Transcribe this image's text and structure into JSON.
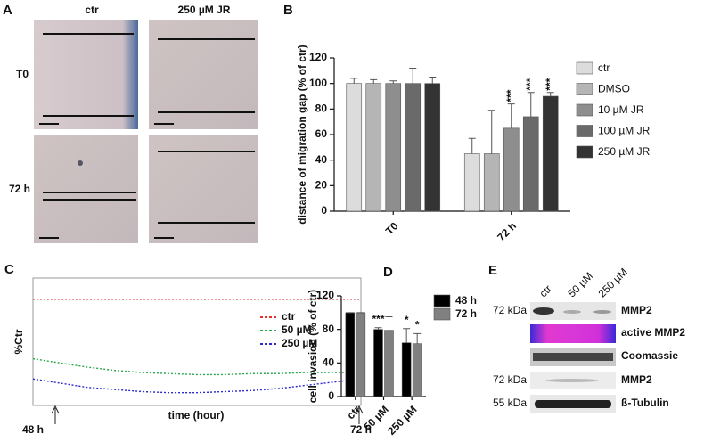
{
  "panels": {
    "A": {
      "panel_label": "A",
      "columns": [
        "ctr",
        "250 µM JR"
      ],
      "rows": [
        "T0",
        "72 h"
      ]
    },
    "E": {
      "panel_label": "E",
      "lanes": [
        "ctr",
        "50 µM",
        "250 µM"
      ],
      "rows": [
        {
          "marker": "72 kDa",
          "label": "MMP2"
        },
        {
          "label": "active MMP2"
        },
        {
          "label": "Coomassie"
        },
        {
          "marker": "72 kDa",
          "label": "MMP2"
        },
        {
          "marker": "55 kDa",
          "label": "ß-Tubulin"
        }
      ]
    }
  },
  "chart_data": [
    {
      "type": "bar",
      "panel_label": "B",
      "y_label": "distance of migration gap (% of ctr)",
      "categories": [
        "T0",
        "72 h"
      ],
      "series": [
        {
          "name": "ctr",
          "color": "#dcdcdc",
          "values": [
            100,
            45
          ],
          "errors": [
            4,
            12
          ],
          "significance": [
            null,
            null
          ]
        },
        {
          "name": "DMSO",
          "color": "#b5b5b5",
          "values": [
            100,
            45
          ],
          "errors": [
            3,
            34
          ],
          "significance": [
            null,
            null
          ]
        },
        {
          "name": "10 µM JR",
          "color": "#8e8e8e",
          "values": [
            100,
            65
          ],
          "errors": [
            2,
            19
          ],
          "significance": [
            null,
            "***"
          ]
        },
        {
          "name": "100 µM JR",
          "color": "#6a6a6a",
          "values": [
            100,
            74
          ],
          "errors": [
            12,
            19
          ],
          "significance": [
            null,
            "***"
          ]
        },
        {
          "name": "250 µM JR",
          "color": "#333333",
          "values": [
            100,
            90
          ],
          "errors": [
            5,
            3
          ],
          "significance": [
            null,
            "***"
          ]
        }
      ],
      "ylim": [
        0,
        120
      ],
      "yticks": [
        0,
        20,
        40,
        60,
        80,
        100,
        120
      ],
      "legend": "right"
    },
    {
      "type": "line",
      "panel_label": "C",
      "y_label": "%Ctr",
      "x_label": "time (hour)",
      "x": [
        48,
        50,
        52,
        54,
        56,
        58,
        60,
        62,
        64,
        66,
        68,
        70,
        72
      ],
      "series": [
        {
          "name": "ctr",
          "color": "#e53030",
          "values": [
            1.0,
            1.0,
            1.0,
            1.0,
            1.0,
            1.0,
            1.0,
            1.0,
            1.0,
            1.0,
            1.0,
            1.0,
            1.0
          ]
        },
        {
          "name": "50 µM",
          "color": "#2aa84a",
          "values": [
            0.44,
            0.4,
            0.36,
            0.33,
            0.31,
            0.3,
            0.29,
            0.29,
            0.3,
            0.3,
            0.31,
            0.31,
            0.31
          ]
        },
        {
          "name": "250 µM",
          "color": "#2a2ad0",
          "values": [
            0.25,
            0.21,
            0.17,
            0.15,
            0.13,
            0.12,
            0.12,
            0.13,
            0.14,
            0.16,
            0.19,
            0.22,
            0.25
          ]
        }
      ],
      "xlim": [
        48,
        72
      ],
      "ylim": [
        0,
        1.2
      ],
      "xticks": [
        {
          "value": 48,
          "label": "48 h"
        },
        {
          "value": 72,
          "label": "72 h"
        }
      ],
      "legend": "right"
    },
    {
      "type": "bar",
      "panel_label": "D",
      "y_label": "cell invasion (% of ctr)",
      "categories": [
        "ctr",
        "50 µM",
        "250 µM"
      ],
      "series": [
        {
          "name": "48 h",
          "color": "#000000",
          "values": [
            100,
            80,
            64
          ],
          "errors": [
            0,
            2,
            17
          ],
          "significance": [
            null,
            "***",
            "*"
          ]
        },
        {
          "name": "72 h",
          "color": "#808080",
          "values": [
            100,
            79,
            63
          ],
          "errors": [
            0,
            16,
            12
          ],
          "significance": [
            null,
            null,
            "*"
          ]
        }
      ],
      "ylim": [
        0,
        120
      ],
      "yticks": [
        0,
        40,
        80,
        120
      ],
      "legend": "right"
    }
  ]
}
